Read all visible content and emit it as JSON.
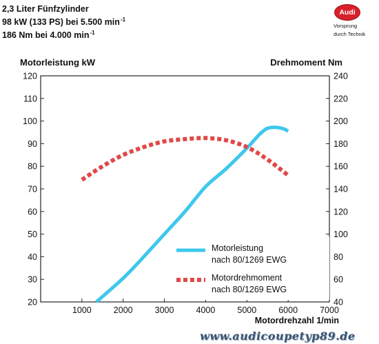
{
  "header": {
    "line1": "2,3 Liter Fünfzylinder",
    "line2": "98 kW (133 PS) bei 5.500 min",
    "line2_sup": "-1",
    "line3": "186 Nm bei 4.000 min",
    "line3_sup": "-1"
  },
  "logo": {
    "brand": "Audi",
    "slogan_line1": "Vorsprung",
    "slogan_line2": "durch Technik"
  },
  "watermark": "www.audicoupetyp89.de",
  "chart_data": {
    "type": "line",
    "ylabel": "Motorleistung kW",
    "y2label": "Drehmoment Nm",
    "xlabel": "Motordrehzahl 1/min",
    "xlim": [
      0,
      7000
    ],
    "ylim": [
      20,
      120
    ],
    "y2lim": [
      40,
      240
    ],
    "xticks": [
      1000,
      2000,
      3000,
      4000,
      5000,
      6000,
      7000
    ],
    "xtick_labels": [
      "1000",
      "2000",
      "3000",
      "4000",
      "5000",
      "6000",
      "7000"
    ],
    "yticks": [
      20,
      30,
      40,
      50,
      60,
      70,
      80,
      90,
      100,
      110,
      120
    ],
    "ytick_labels": [
      "20",
      "30",
      "40",
      "50",
      "60",
      "70",
      "80",
      "90",
      "100",
      "110",
      "120"
    ],
    "y2ticks": [
      40,
      60,
      80,
      100,
      120,
      140,
      160,
      180,
      200,
      220,
      240
    ],
    "y2tick_labels": [
      "40",
      "60",
      "80",
      "100",
      "120",
      "140",
      "160",
      "180",
      "200",
      "220",
      "240"
    ],
    "grid": false,
    "series": [
      {
        "name": "Motorleistung nach 80/1269 EWG",
        "axis": "left",
        "color": "#3ec8ec",
        "style": "solid",
        "x": [
          1350,
          2000,
          2500,
          3000,
          3500,
          4000,
          4500,
          5000,
          5300,
          5500,
          5700,
          5900,
          6000
        ],
        "y": [
          20,
          30.5,
          40,
          50,
          60,
          71,
          79,
          88,
          94,
          96.8,
          97.2,
          96.5,
          95.5
        ]
      },
      {
        "name": "Motordrehmoment nach 80/1269 EWG",
        "axis": "right",
        "color": "#e04848",
        "style": "dotted",
        "x": [
          1000,
          1500,
          2000,
          2500,
          3000,
          3500,
          4000,
          4500,
          5000,
          5500,
          6000
        ],
        "y": [
          148,
          160,
          170,
          177,
          182,
          184,
          185,
          183,
          177,
          166,
          152
        ]
      }
    ],
    "legend": {
      "placement": "bottom-right",
      "entries": [
        {
          "line1": "Motorleistung",
          "line2": "nach 80/1269 EWG"
        },
        {
          "line1": "Motordrehmoment",
          "line2": "nach 80/1269 EWG"
        }
      ]
    }
  }
}
